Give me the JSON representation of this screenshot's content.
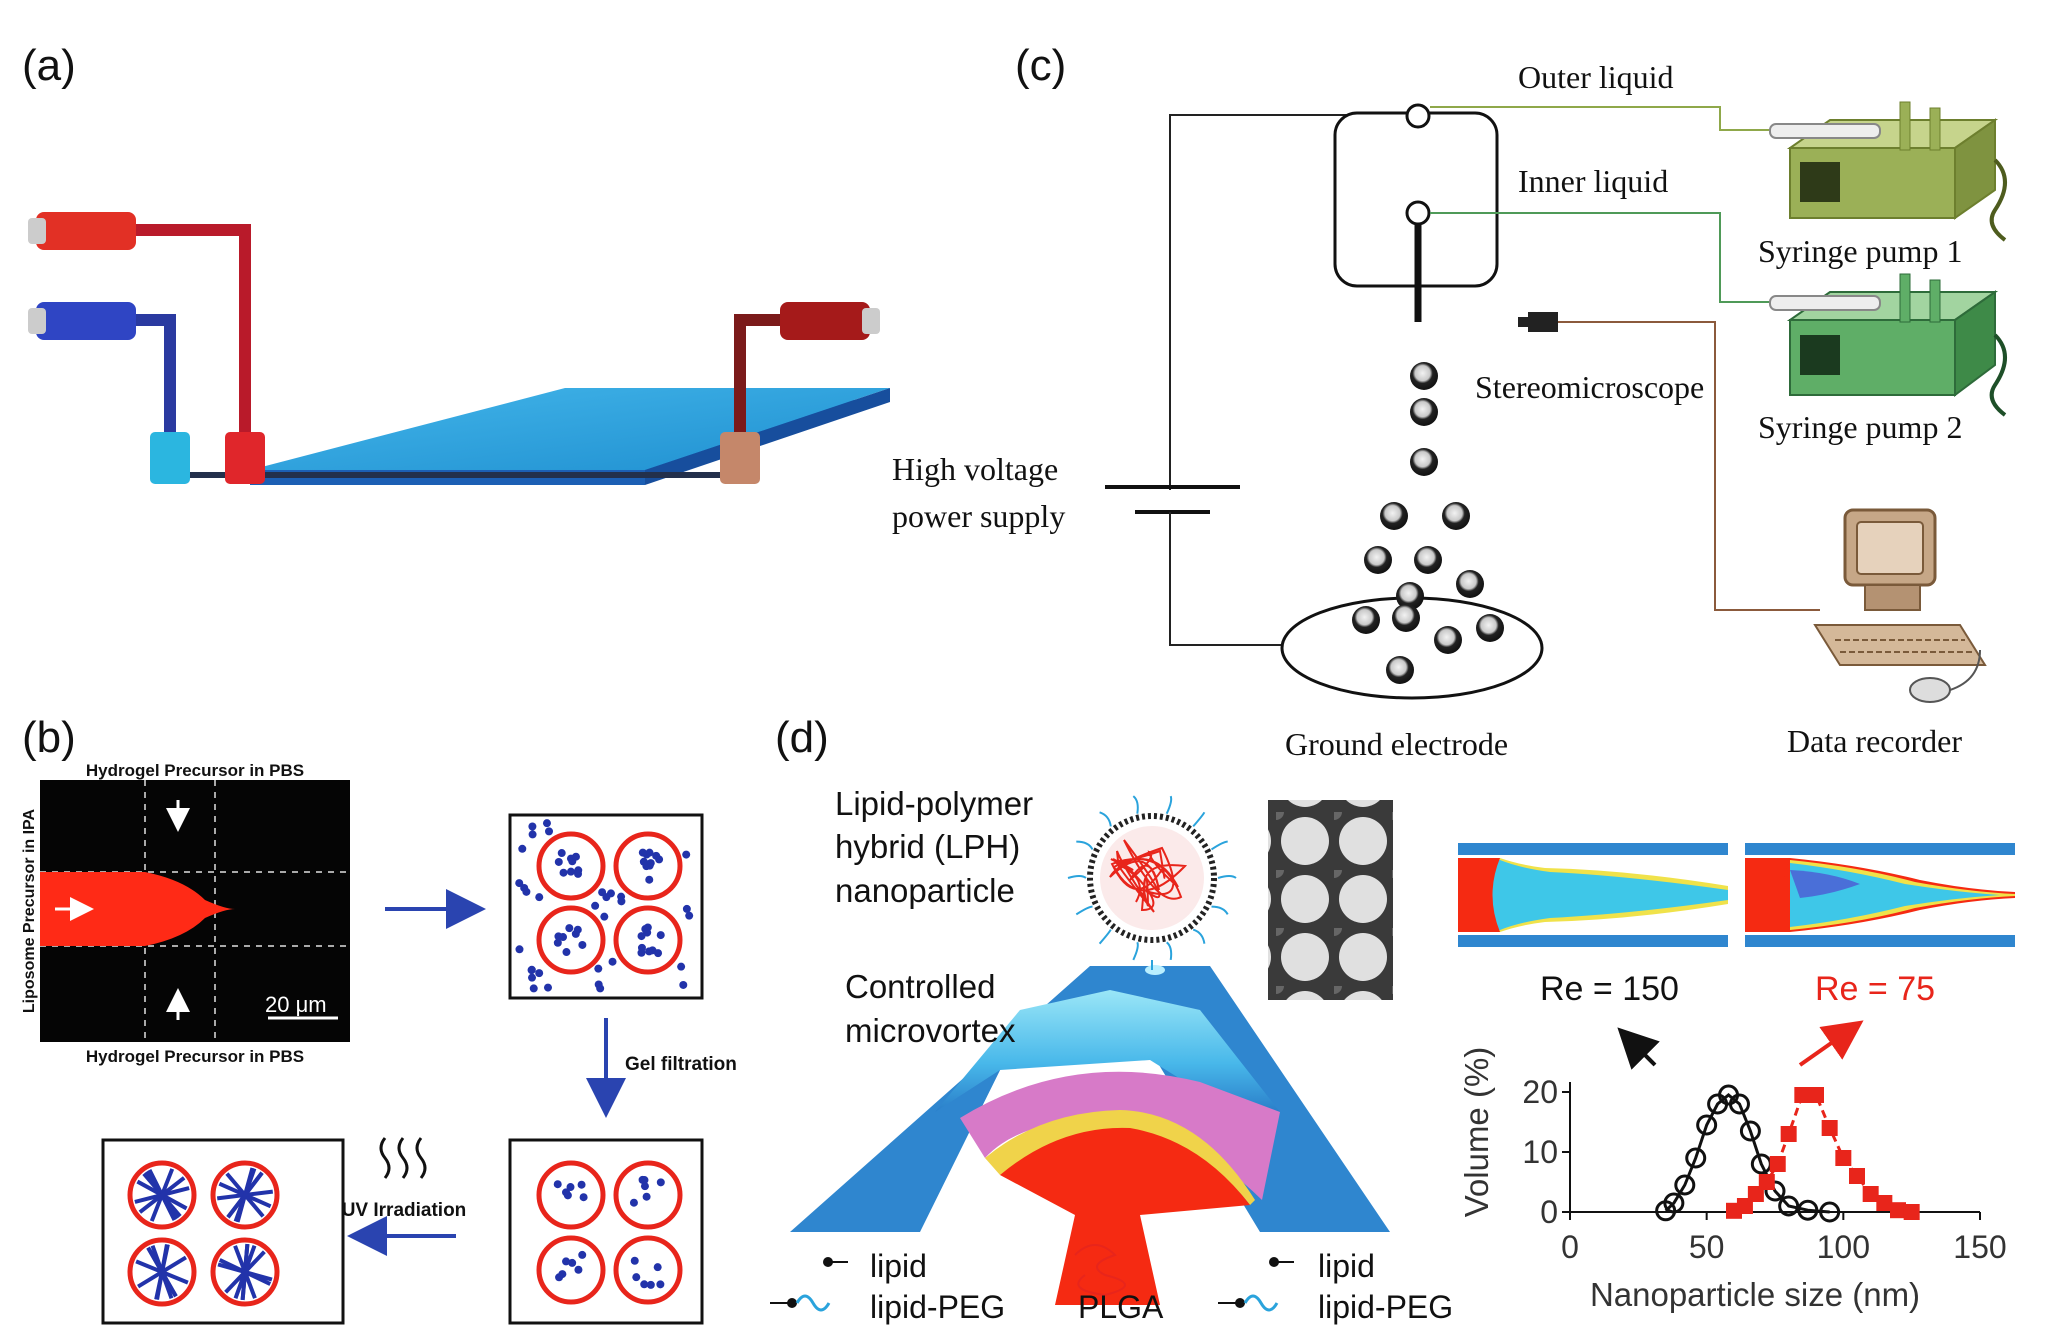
{
  "panels": {
    "a": {
      "label": "(a)"
    },
    "b": {
      "label": "(b)",
      "top_label": "Hydrogel Precursor in PBS",
      "bottom_label": "Hydrogel Precursor in PBS",
      "side_label": "Liposome Precursor in IPA",
      "scale_bar": "20 μm",
      "step_gel_filtration": "Gel filtration",
      "step_uv": "UV Irradiation"
    },
    "c": {
      "label": "(c)",
      "outer_liquid": "Outer liquid",
      "inner_liquid": "Inner liquid",
      "pump1": "Syringe pump 1",
      "pump2": "Syringe pump 2",
      "stereomicroscope": "Stereomicroscope",
      "hv_line1": "High voltage",
      "hv_line2": "power supply",
      "ground": "Ground electrode",
      "recorder": "Data recorder"
    },
    "d": {
      "label": "(d)",
      "lph_line1": "Lipid-polymer",
      "lph_line2": "hybrid (LPH)",
      "lph_line3": "nanoparticle",
      "vortex_line1": "Controlled",
      "vortex_line2": "microvortex",
      "lipid_left": "lipid",
      "lipid_peg_left": "lipid-PEG",
      "plga": "PLGA",
      "lipid_right": "lipid",
      "lipid_peg_right": "lipid-PEG",
      "re150": "Re = 150",
      "re75": "Re = 75"
    }
  },
  "colors": {
    "red": "#e8251b",
    "blue": "#2233aa",
    "channel_blue": "#2d8fd4",
    "chip_cyan": "#2aa3dc",
    "pump1_green": "#8fa84a",
    "pump2_green": "#4f9a58"
  },
  "chart_data": {
    "type": "scatter",
    "xlabel": "Nanoparticle size (nm)",
    "ylabel": "Volume (%)",
    "xlim": [
      0,
      150
    ],
    "ylim": [
      0,
      20
    ],
    "xticks": [
      "0",
      "50",
      "100",
      "150"
    ],
    "yticks": [
      "0",
      "10",
      "20"
    ],
    "series": [
      {
        "name": "Re = 150",
        "color": "#111111",
        "marker": "open-circle",
        "x": [
          35,
          38,
          42,
          46,
          50,
          54,
          58,
          62,
          66,
          70,
          75,
          80,
          87,
          95
        ],
        "y": [
          0.2,
          1.5,
          4.5,
          9,
          14.5,
          18,
          19.5,
          18,
          13.5,
          8,
          3.5,
          1,
          0.3,
          0
        ]
      },
      {
        "name": "Re = 75",
        "color": "#e8251b",
        "marker": "filled-square",
        "x": [
          60,
          64,
          68,
          72,
          76,
          80,
          85,
          90,
          95,
          100,
          105,
          110,
          115,
          120,
          125
        ],
        "y": [
          0.2,
          1,
          3,
          5,
          8,
          13,
          19.5,
          19.5,
          14,
          9,
          6,
          3,
          1.5,
          0.3,
          0
        ]
      }
    ]
  }
}
